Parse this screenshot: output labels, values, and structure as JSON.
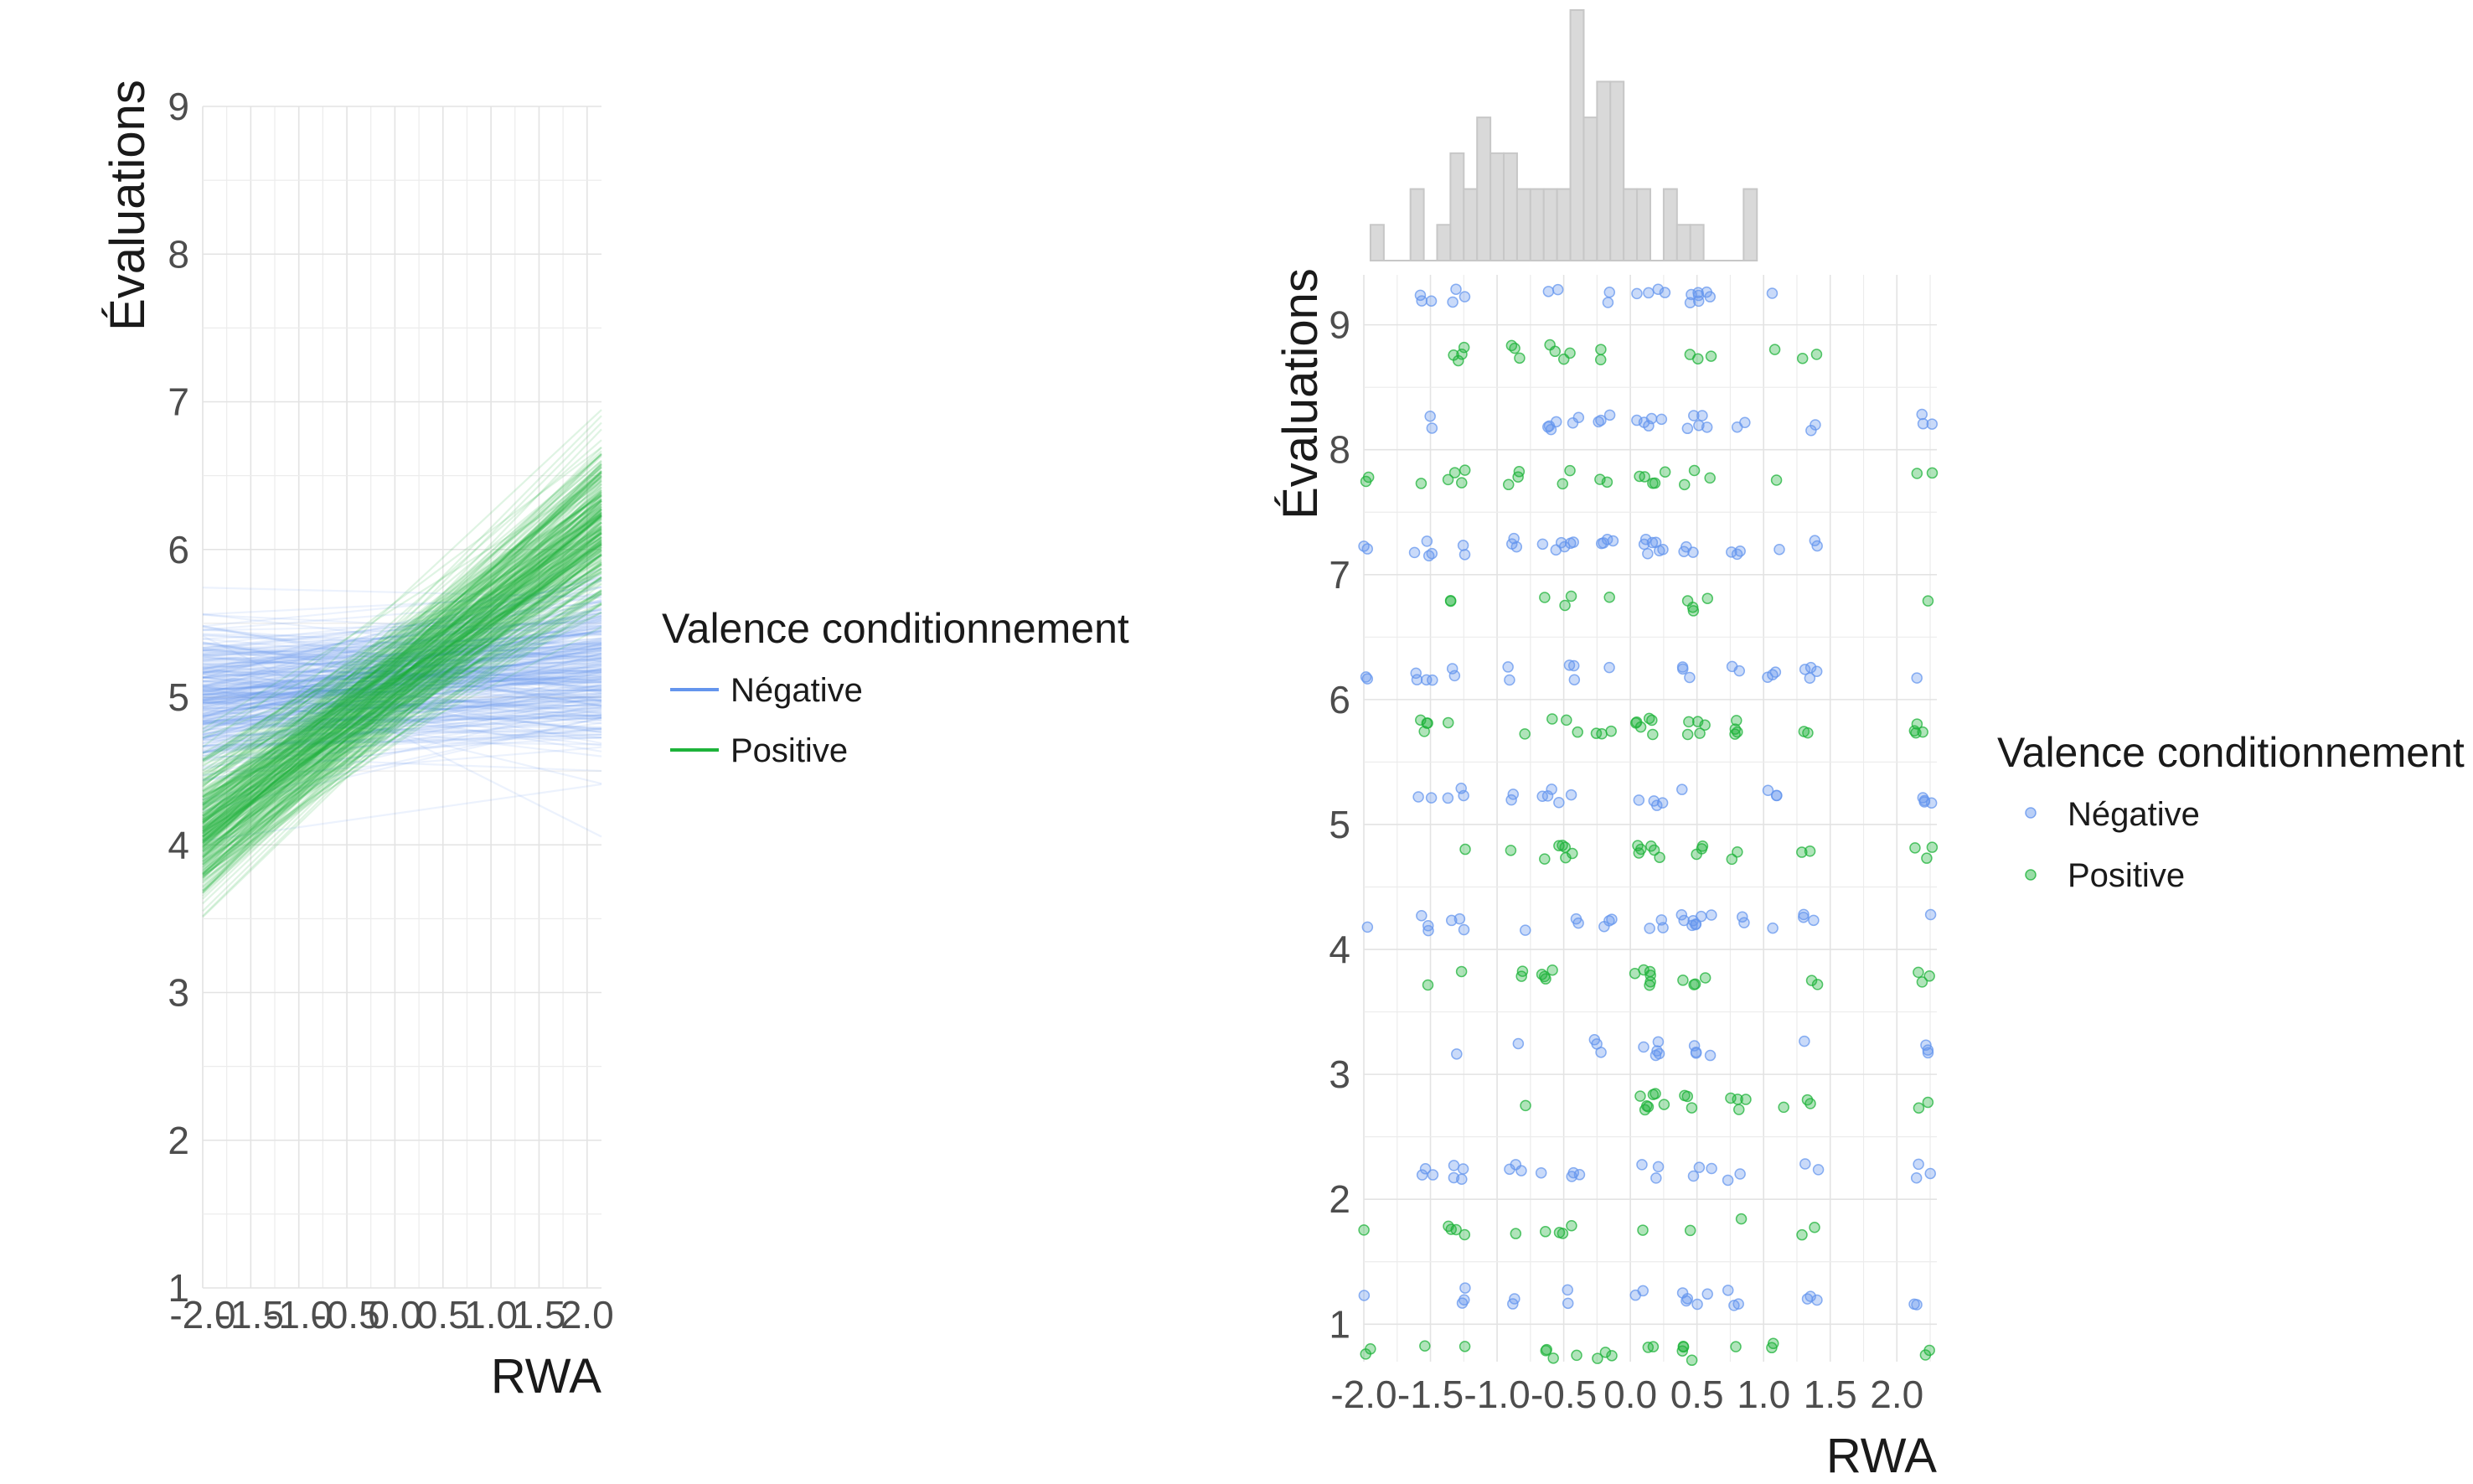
{
  "colors": {
    "negative": "#6495ED",
    "positive": "#1DB33A",
    "histogram": "#D9D9D9",
    "histogram_stroke": "#C7C7C7"
  },
  "chart_data": [
    {
      "type": "line",
      "description": "spaghetti plot of posterior regression lines",
      "xlabel": "RWA",
      "ylabel": "Évaluations",
      "xlim": [
        -2.0,
        2.15
      ],
      "ylim": [
        1,
        9
      ],
      "x_ticks": [
        "-2.0",
        "-1.5",
        "-1.0",
        "-0.5",
        "0.0",
        "0.5",
        "1.0",
        "1.5",
        "2.0"
      ],
      "y_ticks": [
        "1",
        "2",
        "3",
        "4",
        "5",
        "6",
        "7",
        "8",
        "9"
      ],
      "legend": {
        "title": "Valence conditionnement",
        "position": "right"
      },
      "series": [
        {
          "name": "Négative",
          "color": "#6495ED",
          "intercept_mean": 5.1,
          "slope_mean": 0.05,
          "line_count": 300
        },
        {
          "name": "Positive",
          "color": "#1DB33A",
          "intercept_mean": 5.1,
          "slope_mean": 0.5,
          "line_count": 300
        }
      ]
    },
    {
      "type": "scatter",
      "description": "jittered scatter with marginal histogram of RWA",
      "xlabel": "RWA",
      "ylabel": "Évaluations",
      "xlim": [
        -2.0,
        2.3
      ],
      "ylim": [
        0.7,
        9.4
      ],
      "x_ticks": [
        "-2.0",
        "-1.5",
        "-1.0",
        "-0.5",
        "0.0",
        "0.5",
        "1.0",
        "1.5",
        "2.0"
      ],
      "y_ticks": [
        "1",
        "2",
        "3",
        "4",
        "5",
        "6",
        "7",
        "8",
        "9"
      ],
      "legend": {
        "title": "Valence conditionnement",
        "position": "right"
      },
      "x_groups": [
        -2.0,
        -1.55,
        -1.3,
        -0.85,
        -0.6,
        -0.45,
        -0.2,
        0.1,
        0.2,
        0.45,
        0.55,
        0.8,
        1.1,
        1.35,
        2.2
      ],
      "series": [
        {
          "name": "Négative",
          "color": "#6495ED"
        },
        {
          "name": "Positive",
          "color": "#1DB33A"
        }
      ],
      "histogram": {
        "bin_width": 0.1,
        "bins_start": -1.95,
        "counts": [
          1,
          0,
          0,
          2,
          0,
          1,
          3,
          2,
          4,
          3,
          3,
          2,
          2,
          2,
          2,
          7,
          4,
          5,
          5,
          2,
          2,
          0,
          2,
          1,
          1,
          0,
          0,
          0,
          2
        ]
      }
    }
  ]
}
